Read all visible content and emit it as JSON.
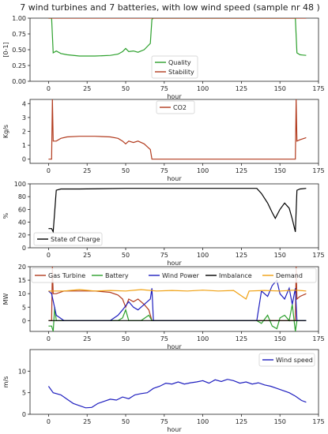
{
  "title": "7 wind turbines and 7 batteries, with low wind speed (sample nr 48 )",
  "chart_data": [
    {
      "type": "line",
      "ylabel": "[0-1]",
      "xlabel": "hour",
      "xlim": [
        -12,
        175
      ],
      "ylim": [
        0,
        1.0
      ],
      "xticks": [
        0,
        25,
        50,
        75,
        100,
        125,
        150,
        175
      ],
      "yticks": [
        0.0,
        0.25,
        0.5,
        0.75,
        1.0
      ],
      "ytick_labels": [
        "0.00",
        "0.25",
        "0.50",
        "0.75",
        "1.00"
      ],
      "legend": "bottom-right",
      "series": [
        {
          "name": "Quality",
          "color": "#2ca02c",
          "points": [
            [
              0,
              1
            ],
            [
              2,
              1
            ],
            [
              3,
              0.45
            ],
            [
              5,
              0.48
            ],
            [
              8,
              0.44
            ],
            [
              12,
              0.42
            ],
            [
              20,
              0.4
            ],
            [
              30,
              0.4
            ],
            [
              40,
              0.41
            ],
            [
              45,
              0.43
            ],
            [
              48,
              0.47
            ],
            [
              50,
              0.52
            ],
            [
              52,
              0.47
            ],
            [
              55,
              0.48
            ],
            [
              58,
              0.46
            ],
            [
              62,
              0.5
            ],
            [
              64,
              0.55
            ],
            [
              66,
              0.6
            ],
            [
              67,
              0.98
            ],
            [
              68,
              1
            ],
            [
              160,
              1
            ],
            [
              161,
              0.45
            ],
            [
              163,
              0.42
            ],
            [
              167,
              0.41
            ]
          ]
        },
        {
          "name": "Stability",
          "color": "#b23b1e",
          "points": [
            [
              0,
              1
            ],
            [
              167,
              1
            ]
          ]
        }
      ]
    },
    {
      "type": "line",
      "ylabel": "Kg/s",
      "xlabel": "hour",
      "xlim": [
        -12,
        175
      ],
      "ylim": [
        -0.3,
        4.3
      ],
      "xticks": [
        0,
        25,
        50,
        75,
        100,
        125,
        150,
        175
      ],
      "yticks": [
        0,
        1,
        2,
        3,
        4
      ],
      "ytick_labels": [
        "0",
        "1",
        "2",
        "3",
        "4"
      ],
      "legend": "top-center",
      "series": [
        {
          "name": "CO2",
          "color": "#b23b1e",
          "points": [
            [
              0,
              0
            ],
            [
              2,
              0
            ],
            [
              2.5,
              4.3
            ],
            [
              3,
              1.3
            ],
            [
              5,
              1.3
            ],
            [
              8,
              1.5
            ],
            [
              12,
              1.6
            ],
            [
              20,
              1.65
            ],
            [
              30,
              1.65
            ],
            [
              40,
              1.6
            ],
            [
              45,
              1.5
            ],
            [
              48,
              1.3
            ],
            [
              50,
              1.1
            ],
            [
              52,
              1.3
            ],
            [
              55,
              1.2
            ],
            [
              58,
              1.3
            ],
            [
              62,
              1.1
            ],
            [
              64,
              0.9
            ],
            [
              66,
              0.7
            ],
            [
              67,
              0
            ],
            [
              160,
              0
            ],
            [
              160.5,
              4.3
            ],
            [
              161,
              1.3
            ],
            [
              163,
              1.4
            ],
            [
              167,
              1.55
            ]
          ]
        }
      ]
    },
    {
      "type": "line",
      "ylabel": "%",
      "xlabel": "hour",
      "xlim": [
        -12,
        175
      ],
      "ylim": [
        0,
        100
      ],
      "xticks": [
        0,
        25,
        50,
        75,
        100,
        125,
        150,
        175
      ],
      "yticks": [
        0,
        20,
        40,
        60,
        80,
        100
      ],
      "ytick_labels": [
        "0",
        "20",
        "40",
        "60",
        "80",
        "100"
      ],
      "legend": "bottom-left",
      "series": [
        {
          "name": "State of Charge",
          "color": "#000000",
          "points": [
            [
              0,
              30
            ],
            [
              2,
              30
            ],
            [
              3,
              25
            ],
            [
              5,
              90
            ],
            [
              8,
              92
            ],
            [
              20,
              92
            ],
            [
              50,
              93
            ],
            [
              100,
              93
            ],
            [
              135,
              93
            ],
            [
              138,
              85
            ],
            [
              142,
              70
            ],
            [
              145,
              55
            ],
            [
              147,
              46
            ],
            [
              150,
              60
            ],
            [
              153,
              70
            ],
            [
              156,
              62
            ],
            [
              158,
              45
            ],
            [
              160,
              25
            ],
            [
              161,
              90
            ],
            [
              163,
              92
            ],
            [
              167,
              93
            ]
          ]
        }
      ]
    },
    {
      "type": "line",
      "ylabel": "MW",
      "xlabel": "hour",
      "xlim": [
        -12,
        175
      ],
      "ylim": [
        -4,
        20
      ],
      "xticks": [
        0,
        25,
        50,
        75,
        100,
        125,
        150,
        175
      ],
      "yticks": [
        0,
        5,
        10,
        15,
        20
      ],
      "ytick_labels": [
        "0",
        "5",
        "10",
        "15",
        "20"
      ],
      "legend": "top (in plot)",
      "series": [
        {
          "name": "Gas Turbine",
          "color": "#b23b1e",
          "points": [
            [
              0,
              0
            ],
            [
              2,
              0
            ],
            [
              2.5,
              20
            ],
            [
              3,
              10
            ],
            [
              5,
              10
            ],
            [
              10,
              11
            ],
            [
              20,
              11
            ],
            [
              30,
              11
            ],
            [
              40,
              10.5
            ],
            [
              45,
              9.5
            ],
            [
              48,
              8
            ],
            [
              50,
              5
            ],
            [
              52,
              8
            ],
            [
              55,
              7
            ],
            [
              58,
              8
            ],
            [
              62,
              6
            ],
            [
              65,
              4
            ],
            [
              67,
              0
            ],
            [
              160,
              0
            ],
            [
              160.5,
              20
            ],
            [
              161,
              8
            ],
            [
              163,
              9
            ],
            [
              167,
              10
            ]
          ]
        },
        {
          "name": "Battery",
          "color": "#2ca02c",
          "points": [
            [
              0,
              -2
            ],
            [
              2,
              -2
            ],
            [
              3,
              -4
            ],
            [
              4,
              5
            ],
            [
              5,
              0
            ],
            [
              20,
              0
            ],
            [
              45,
              0
            ],
            [
              48,
              1
            ],
            [
              50,
              4
            ],
            [
              52,
              0
            ],
            [
              60,
              0
            ],
            [
              65,
              2
            ],
            [
              67,
              0
            ],
            [
              135,
              0
            ],
            [
              138,
              -1
            ],
            [
              142,
              2
            ],
            [
              145,
              -2
            ],
            [
              148,
              -3
            ],
            [
              150,
              1
            ],
            [
              153,
              2
            ],
            [
              156,
              0
            ],
            [
              158,
              6
            ],
            [
              160,
              -4
            ],
            [
              161,
              0
            ],
            [
              167,
              0
            ]
          ]
        },
        {
          "name": "Wind Power",
          "color": "#1f1fbf",
          "points": [
            [
              0,
              11
            ],
            [
              2,
              10
            ],
            [
              5,
              2
            ],
            [
              10,
              0
            ],
            [
              40,
              0
            ],
            [
              45,
              2
            ],
            [
              48,
              4
            ],
            [
              52,
              7
            ],
            [
              55,
              5
            ],
            [
              58,
              4
            ],
            [
              62,
              6
            ],
            [
              66,
              8
            ],
            [
              67,
              12
            ],
            [
              68,
              0
            ],
            [
              135,
              0
            ],
            [
              138,
              11
            ],
            [
              142,
              9
            ],
            [
              145,
              13
            ],
            [
              148,
              15
            ],
            [
              150,
              10
            ],
            [
              153,
              8
            ],
            [
              156,
              12
            ],
            [
              158,
              6
            ],
            [
              160,
              12
            ],
            [
              161,
              0
            ],
            [
              167,
              0
            ]
          ]
        },
        {
          "name": "Imbalance",
          "color": "#000000",
          "points": [
            [
              0,
              0
            ],
            [
              167,
              0
            ]
          ]
        },
        {
          "name": "Demand",
          "color": "#f0a010",
          "points": [
            [
              0,
              11
            ],
            [
              10,
              11
            ],
            [
              20,
              11.5
            ],
            [
              30,
              11
            ],
            [
              40,
              11.2
            ],
            [
              50,
              11
            ],
            [
              60,
              11.5
            ],
            [
              70,
              11
            ],
            [
              80,
              11.2
            ],
            [
              90,
              11
            ],
            [
              100,
              11.3
            ],
            [
              110,
              11
            ],
            [
              120,
              11.2
            ],
            [
              128,
              8
            ],
            [
              130,
              11
            ],
            [
              140,
              11.2
            ],
            [
              150,
              11
            ],
            [
              160,
              11.3
            ],
            [
              167,
              11
            ]
          ]
        }
      ]
    },
    {
      "type": "line",
      "ylabel": "m/s",
      "xlabel": "hour",
      "xlim": [
        -12,
        175
      ],
      "ylim": [
        0,
        15
      ],
      "xticks": [
        0,
        25,
        50,
        75,
        100,
        125,
        150,
        175
      ],
      "yticks": [
        0,
        5,
        10
      ],
      "ytick_labels": [
        "0",
        "5",
        "10"
      ],
      "legend": "top-right",
      "series": [
        {
          "name": "Wind speed",
          "color": "#1f1fbf",
          "points": [
            [
              0,
              6.5
            ],
            [
              3,
              5
            ],
            [
              8,
              4.5
            ],
            [
              12,
              3.5
            ],
            [
              16,
              2.5
            ],
            [
              20,
              2
            ],
            [
              24,
              1.5
            ],
            [
              28,
              1.6
            ],
            [
              32,
              2.5
            ],
            [
              36,
              3
            ],
            [
              40,
              3.5
            ],
            [
              44,
              3.3
            ],
            [
              48,
              4
            ],
            [
              52,
              3.6
            ],
            [
              56,
              4.5
            ],
            [
              60,
              4.8
            ],
            [
              64,
              5
            ],
            [
              68,
              6
            ],
            [
              72,
              6.5
            ],
            [
              76,
              7.2
            ],
            [
              80,
              7
            ],
            [
              84,
              7.5
            ],
            [
              88,
              7
            ],
            [
              92,
              7.3
            ],
            [
              96,
              7.5
            ],
            [
              100,
              7.8
            ],
            [
              104,
              7.2
            ],
            [
              108,
              8
            ],
            [
              112,
              7.6
            ],
            [
              116,
              8.1
            ],
            [
              120,
              7.8
            ],
            [
              124,
              7.2
            ],
            [
              128,
              7.5
            ],
            [
              132,
              7
            ],
            [
              136,
              7.3
            ],
            [
              140,
              6.8
            ],
            [
              144,
              6.5
            ],
            [
              148,
              6
            ],
            [
              152,
              5.5
            ],
            [
              156,
              5
            ],
            [
              160,
              4.2
            ],
            [
              164,
              3.2
            ],
            [
              167,
              2.8
            ]
          ]
        }
      ]
    }
  ]
}
